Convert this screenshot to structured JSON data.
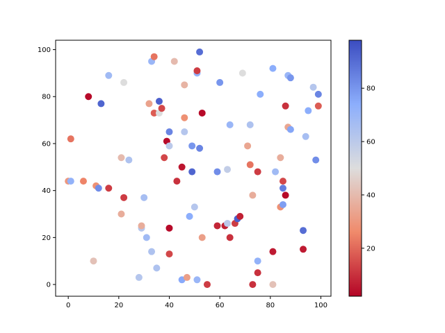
{
  "chart_data": {
    "type": "scatter",
    "title": "",
    "xlabel": "",
    "ylabel": "",
    "xlim": [
      -5,
      104
    ],
    "ylim": [
      -5,
      104
    ],
    "x_ticks": [
      0,
      20,
      40,
      60,
      80,
      100
    ],
    "y_ticks": [
      0,
      20,
      40,
      60,
      80,
      100
    ],
    "grid": false,
    "colormap": "coolwarm_r",
    "colorbar": {
      "range": [
        2,
        98
      ],
      "ticks": [
        20,
        40,
        60,
        80
      ]
    },
    "colors": {
      "low": "#b40426",
      "mid": "#dddddd",
      "high": "#3b4cc0"
    },
    "points": [
      {
        "x": 0,
        "y": 44,
        "c": 30
      },
      {
        "x": 1,
        "y": 44,
        "c": 72
      },
      {
        "x": 1,
        "y": 62,
        "c": 22
      },
      {
        "x": 6,
        "y": 44,
        "c": 25
      },
      {
        "x": 8,
        "y": 80,
        "c": 3
      },
      {
        "x": 10,
        "y": 10,
        "c": 42
      },
      {
        "x": 11,
        "y": 42,
        "c": 28
      },
      {
        "x": 12,
        "y": 41,
        "c": 82
      },
      {
        "x": 13,
        "y": 77,
        "c": 92
      },
      {
        "x": 16,
        "y": 41,
        "c": 12
      },
      {
        "x": 16,
        "y": 89,
        "c": 68
      },
      {
        "x": 21,
        "y": 30,
        "c": 36
      },
      {
        "x": 21,
        "y": 54,
        "c": 40
      },
      {
        "x": 22,
        "y": 37,
        "c": 12
      },
      {
        "x": 22,
        "y": 86,
        "c": 50
      },
      {
        "x": 24,
        "y": 53,
        "c": 64
      },
      {
        "x": 28,
        "y": 3,
        "c": 62
      },
      {
        "x": 29,
        "y": 24,
        "c": 62
      },
      {
        "x": 29,
        "y": 25,
        "c": 36
      },
      {
        "x": 30,
        "y": 37,
        "c": 66
      },
      {
        "x": 31,
        "y": 20,
        "c": 68
      },
      {
        "x": 32,
        "y": 77,
        "c": 33
      },
      {
        "x": 33,
        "y": 14,
        "c": 64
      },
      {
        "x": 33,
        "y": 95,
        "c": 70
      },
      {
        "x": 34,
        "y": 73,
        "c": 18
      },
      {
        "x": 34,
        "y": 97,
        "c": 22
      },
      {
        "x": 35,
        "y": 7,
        "c": 64
      },
      {
        "x": 36,
        "y": 73,
        "c": 50
      },
      {
        "x": 36,
        "y": 78,
        "c": 93
      },
      {
        "x": 37,
        "y": 75,
        "c": 14
      },
      {
        "x": 38,
        "y": 54,
        "c": 14
      },
      {
        "x": 39,
        "y": 61,
        "c": 3
      },
      {
        "x": 40,
        "y": 24,
        "c": 3
      },
      {
        "x": 40,
        "y": 13,
        "c": 14
      },
      {
        "x": 40,
        "y": 59,
        "c": 60
      },
      {
        "x": 40,
        "y": 65,
        "c": 84
      },
      {
        "x": 42,
        "y": 95,
        "c": 40
      },
      {
        "x": 43,
        "y": 44,
        "c": 10
      },
      {
        "x": 45,
        "y": 2,
        "c": 75
      },
      {
        "x": 45,
        "y": 50,
        "c": 5
      },
      {
        "x": 46,
        "y": 65,
        "c": 62
      },
      {
        "x": 46,
        "y": 71,
        "c": 28
      },
      {
        "x": 46,
        "y": 85,
        "c": 38
      },
      {
        "x": 47,
        "y": 3,
        "c": 32
      },
      {
        "x": 48,
        "y": 29,
        "c": 74
      },
      {
        "x": 49,
        "y": 48,
        "c": 92
      },
      {
        "x": 49,
        "y": 59,
        "c": 80
      },
      {
        "x": 50,
        "y": 33,
        "c": 62
      },
      {
        "x": 51,
        "y": 2,
        "c": 70
      },
      {
        "x": 51,
        "y": 90,
        "c": 72
      },
      {
        "x": 51,
        "y": 91,
        "c": 12
      },
      {
        "x": 52,
        "y": 58,
        "c": 84
      },
      {
        "x": 52,
        "y": 99,
        "c": 90
      },
      {
        "x": 53,
        "y": 20,
        "c": 32
      },
      {
        "x": 53,
        "y": 73,
        "c": 3
      },
      {
        "x": 55,
        "y": 0,
        "c": 12
      },
      {
        "x": 59,
        "y": 25,
        "c": 8
      },
      {
        "x": 59,
        "y": 48,
        "c": 82
      },
      {
        "x": 60,
        "y": 86,
        "c": 80
      },
      {
        "x": 62,
        "y": 25,
        "c": 60
      },
      {
        "x": 62,
        "y": 25,
        "c": 7
      },
      {
        "x": 63,
        "y": 26,
        "c": 60
      },
      {
        "x": 63,
        "y": 49,
        "c": 58
      },
      {
        "x": 64,
        "y": 20,
        "c": 10
      },
      {
        "x": 64,
        "y": 68,
        "c": 70
      },
      {
        "x": 66,
        "y": 26,
        "c": 12
      },
      {
        "x": 67,
        "y": 28,
        "c": 93
      },
      {
        "x": 68,
        "y": 29,
        "c": 7
      },
      {
        "x": 69,
        "y": 90,
        "c": 50
      },
      {
        "x": 71,
        "y": 59,
        "c": 34
      },
      {
        "x": 72,
        "y": 51,
        "c": 22
      },
      {
        "x": 72,
        "y": 68,
        "c": 64
      },
      {
        "x": 73,
        "y": 0,
        "c": 10
      },
      {
        "x": 73,
        "y": 38,
        "c": 36
      },
      {
        "x": 75,
        "y": 5,
        "c": 10
      },
      {
        "x": 75,
        "y": 10,
        "c": 72
      },
      {
        "x": 75,
        "y": 48,
        "c": 12
      },
      {
        "x": 76,
        "y": 81,
        "c": 74
      },
      {
        "x": 81,
        "y": 0,
        "c": 42
      },
      {
        "x": 81,
        "y": 14,
        "c": 6
      },
      {
        "x": 81,
        "y": 92,
        "c": 74
      },
      {
        "x": 82,
        "y": 48,
        "c": 68
      },
      {
        "x": 84,
        "y": 33,
        "c": 28
      },
      {
        "x": 84,
        "y": 54,
        "c": 36
      },
      {
        "x": 85,
        "y": 34,
        "c": 78
      },
      {
        "x": 85,
        "y": 41,
        "c": 86
      },
      {
        "x": 85,
        "y": 44,
        "c": 14
      },
      {
        "x": 86,
        "y": 38,
        "c": 3
      },
      {
        "x": 86,
        "y": 76,
        "c": 10
      },
      {
        "x": 87,
        "y": 67,
        "c": 34
      },
      {
        "x": 87,
        "y": 89,
        "c": 70
      },
      {
        "x": 88,
        "y": 66,
        "c": 76
      },
      {
        "x": 88,
        "y": 88,
        "c": 80
      },
      {
        "x": 93,
        "y": 15,
        "c": 6
      },
      {
        "x": 93,
        "y": 23,
        "c": 90
      },
      {
        "x": 94,
        "y": 63,
        "c": 66
      },
      {
        "x": 95,
        "y": 74,
        "c": 74
      },
      {
        "x": 97,
        "y": 84,
        "c": 62
      },
      {
        "x": 98,
        "y": 53,
        "c": 82
      },
      {
        "x": 99,
        "y": 76,
        "c": 18
      },
      {
        "x": 99,
        "y": 81,
        "c": 84
      }
    ]
  }
}
